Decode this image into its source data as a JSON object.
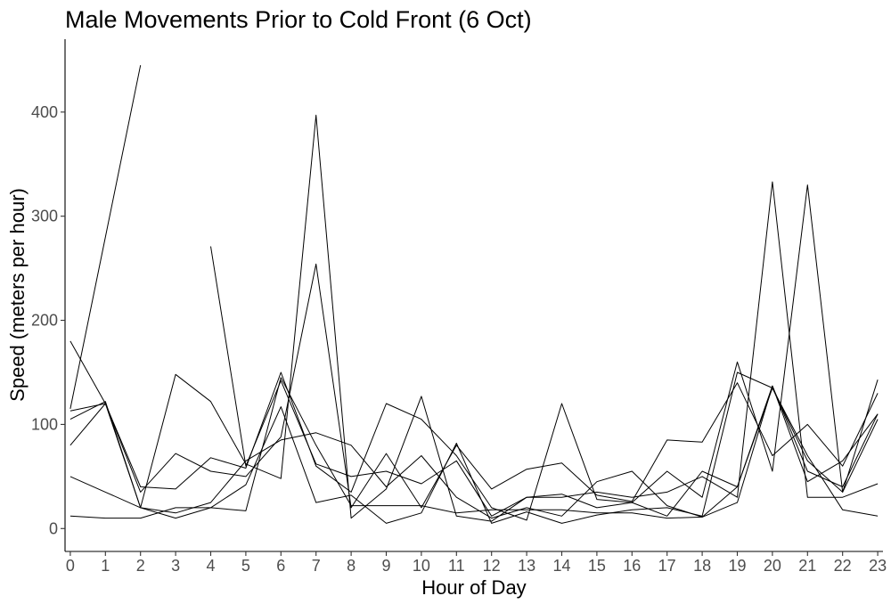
{
  "chart_data": {
    "type": "line",
    "title": "Male Movements Prior to Cold Front (6 Oct)",
    "xlabel": "Hour of Day",
    "ylabel": "Speed (meters per hour)",
    "xlim": [
      -0.15,
      23.15
    ],
    "ylim": [
      -22,
      470
    ],
    "x_ticks": [
      0,
      1,
      2,
      3,
      4,
      5,
      6,
      7,
      8,
      9,
      10,
      11,
      12,
      13,
      14,
      15,
      16,
      17,
      18,
      19,
      20,
      21,
      22,
      23
    ],
    "y_ticks": [
      0,
      100,
      200,
      300,
      400
    ],
    "grid": false,
    "legend": "none",
    "line_color": "#000000",
    "series": [
      {
        "x": [
          0,
          1,
          2
        ],
        "values": [
          115,
          280,
          445
        ]
      },
      {
        "x": [
          4,
          5,
          6,
          7,
          8,
          9,
          10,
          11,
          12,
          13,
          14,
          15,
          16,
          17,
          18,
          19,
          20,
          21,
          22,
          23
        ],
        "values": [
          271,
          60,
          142,
          62,
          50,
          55,
          43,
          65,
          12,
          30,
          33,
          20,
          25,
          12,
          55,
          40,
          137,
          55,
          40,
          110
        ]
      },
      {
        "x": [
          0,
          1,
          2,
          3,
          4,
          5,
          6,
          7,
          8,
          9,
          10,
          11,
          12,
          13,
          14,
          15,
          16,
          17,
          18,
          19,
          20,
          21,
          22,
          23
        ],
        "values": [
          113,
          120,
          40,
          38,
          68,
          58,
          150,
          60,
          35,
          120,
          105,
          70,
          20,
          8,
          120,
          28,
          25,
          55,
          30,
          160,
          55,
          330,
          35,
          143
        ]
      },
      {
        "x": [
          0,
          1,
          2,
          3,
          4,
          5,
          6,
          7,
          8,
          9,
          10,
          11,
          12,
          13,
          14,
          15,
          16,
          17,
          18,
          19,
          20,
          21,
          22,
          23
        ],
        "values": [
          105,
          122,
          20,
          148,
          122,
          62,
          48,
          397,
          10,
          38,
          127,
          12,
          7,
          30,
          30,
          35,
          30,
          35,
          50,
          30,
          333,
          30,
          30,
          43
        ]
      },
      {
        "x": [
          0,
          1,
          2,
          3,
          4,
          5,
          6,
          7,
          8,
          9,
          10,
          11,
          12,
          13,
          14,
          15,
          16,
          17,
          18,
          19,
          20,
          21,
          22,
          23
        ],
        "values": [
          180,
          120,
          35,
          72,
          55,
          50,
          88,
          254,
          20,
          72,
          20,
          80,
          38,
          57,
          63,
          32,
          26,
          85,
          83,
          140,
          70,
          100,
          60,
          130
        ]
      },
      {
        "x": [
          0,
          1,
          2,
          3,
          4,
          5,
          6,
          7,
          8,
          9,
          10,
          11,
          12,
          13,
          14,
          15,
          16,
          17,
          18,
          19,
          20,
          21,
          22,
          23
        ],
        "values": [
          80,
          120,
          20,
          10,
          20,
          42,
          117,
          25,
          32,
          5,
          15,
          82,
          5,
          16,
          5,
          13,
          18,
          20,
          12,
          150,
          135,
          65,
          35,
          105
        ]
      },
      {
        "x": [
          0,
          1,
          2,
          3,
          4,
          5,
          6,
          7,
          8,
          9,
          10,
          11,
          12,
          13,
          14,
          15,
          16,
          17,
          18,
          19,
          20,
          21,
          22,
          23
        ],
        "values": [
          50,
          35,
          20,
          15,
          25,
          65,
          85,
          92,
          80,
          40,
          70,
          30,
          10,
          20,
          12,
          45,
          55,
          22,
          11,
          40,
          135,
          70,
          18,
          12
        ]
      },
      {
        "x": [
          0,
          1,
          2,
          3,
          4,
          5,
          6,
          7,
          8,
          9,
          10,
          11,
          12,
          13,
          14,
          15,
          16,
          17,
          18,
          19,
          20,
          21,
          22,
          23
        ],
        "values": [
          12,
          10,
          10,
          20,
          20,
          17,
          145,
          80,
          22,
          22,
          22,
          15,
          18,
          18,
          18,
          15,
          15,
          10,
          11,
          25,
          137,
          45,
          65,
          110
        ]
      }
    ]
  }
}
